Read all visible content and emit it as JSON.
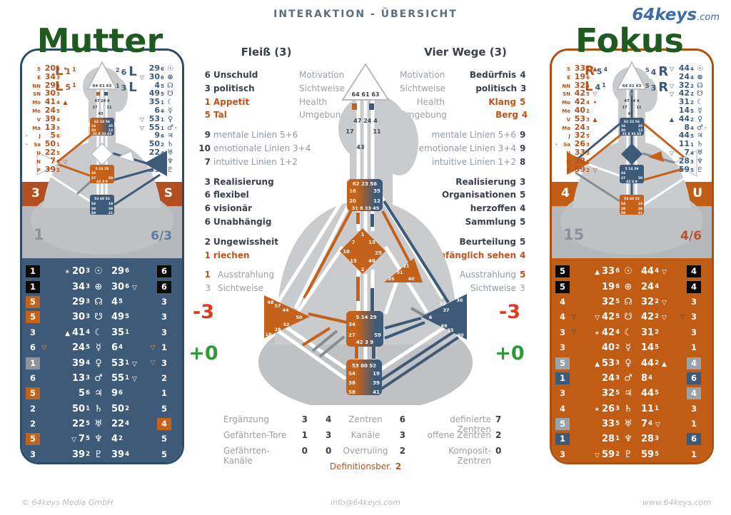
{
  "header": {
    "title": "INTERAKTION - ÜBERSICHT",
    "logo": "64keys",
    "logo_suffix": ".com"
  },
  "colors": {
    "orange": "#c05c13",
    "blue": "#3d5a78",
    "band_red": "#b34e1e",
    "title_green": "#1f5b21",
    "delta_red": "#e23a1e",
    "delta_green": "#2f9a35",
    "silhouette_gray": "#c9cbcd"
  },
  "deltas": {
    "left": {
      "minus": "-3",
      "plus": "+0"
    },
    "right": {
      "minus": "-3",
      "plus": "+0"
    }
  },
  "panels": {
    "left": {
      "title": "Mutter",
      "band": {
        "tl": "3",
        "tr": "S",
        "bl": "1",
        "br": "6/3"
      },
      "profile_left": [
        [
          "L",
          "1",
          "1"
        ],
        [
          "L",
          "5",
          "1"
        ]
      ],
      "profile_right": [
        [
          "2",
          "6",
          "L"
        ],
        [
          "1",
          "3",
          "L"
        ]
      ],
      "design": [
        [
          "",
          "S",
          "20",
          "3",
          "✶"
        ],
        [
          "",
          "E",
          "34",
          "3",
          ""
        ],
        [
          "",
          "NN",
          "29",
          "3",
          ""
        ],
        [
          "",
          "SN",
          "30",
          "3",
          ""
        ],
        [
          "",
          "Mo",
          "41",
          "4",
          "▲"
        ],
        [
          "",
          "Me",
          "24",
          "5",
          ""
        ],
        [
          "",
          "V",
          "39",
          "4",
          ""
        ],
        [
          "",
          "Ma",
          "13",
          "3",
          ""
        ],
        [
          "·",
          "J",
          "5",
          "6",
          ""
        ],
        [
          "·",
          "Sa",
          "50",
          "1",
          ""
        ],
        [
          "",
          "U",
          "22",
          "5",
          ""
        ],
        [
          "",
          "N",
          "7",
          "5",
          "▽"
        ],
        [
          "",
          "P",
          "39",
          "2",
          ""
        ]
      ],
      "person": [
        [
          "",
          "29",
          "6",
          "☉",
          ""
        ],
        [
          "▽",
          "30",
          "6",
          "⊕",
          ""
        ],
        [
          "",
          "4",
          "5",
          "☊",
          ""
        ],
        [
          "",
          "49",
          "5",
          "☋",
          ""
        ],
        [
          "",
          "35",
          "1",
          "☾",
          ""
        ],
        [
          "",
          "6",
          "4",
          "☿",
          ""
        ],
        [
          "▽",
          "53",
          "1",
          "♀",
          ""
        ],
        [
          "▽",
          "55",
          "1",
          "♂",
          "·"
        ],
        [
          "",
          "9",
          "6",
          "♃",
          ""
        ],
        [
          "",
          "50",
          "2",
          "♄",
          ""
        ],
        [
          "",
          "22",
          "4",
          "♅",
          ""
        ],
        [
          "",
          "4",
          "2",
          "♆",
          ""
        ],
        [
          "",
          "39",
          "4",
          "♇",
          ""
        ]
      ],
      "table": [
        [
          "1",
          "k",
          "",
          "✶",
          "20",
          "3",
          "☉",
          "29",
          "6",
          "",
          "",
          "6",
          "k"
        ],
        [
          "1",
          "k",
          "",
          "",
          "34",
          "3",
          "⊕",
          "30",
          "6",
          "▽",
          "",
          "6",
          "k"
        ],
        [
          "5",
          "o",
          "",
          "",
          "29",
          "3",
          "☊",
          "4",
          "5",
          "",
          "",
          "3",
          ""
        ],
        [
          "5",
          "o",
          "",
          "",
          "30",
          "3",
          "☋",
          "49",
          "5",
          "",
          "",
          "3",
          ""
        ],
        [
          "3",
          "",
          "",
          "▲",
          "41",
          "4",
          "☾",
          "35",
          "1",
          "",
          "",
          "3",
          ""
        ],
        [
          "6",
          "",
          "▽",
          "",
          "24",
          "5",
          "☿",
          "6",
          "4",
          "",
          "▽",
          "1",
          ""
        ],
        [
          "1",
          "g",
          "",
          "",
          "39",
          "4",
          "♀",
          "53",
          "1",
          "▽",
          "▽",
          "3",
          ""
        ],
        [
          "6",
          "",
          "",
          "",
          "13",
          "3",
          "♂",
          "55",
          "1",
          "▽",
          "",
          "2",
          ""
        ],
        [
          "5",
          "o",
          "",
          "",
          "5",
          "6",
          "♃",
          "9",
          "6",
          "",
          "",
          "1",
          ""
        ],
        [
          "2",
          "",
          "",
          "",
          "50",
          "1",
          "♄",
          "50",
          "2",
          "",
          "",
          "5",
          ""
        ],
        [
          "2",
          "",
          "",
          "",
          "22",
          "5",
          "♅",
          "22",
          "4",
          "",
          "",
          "4",
          "o"
        ],
        [
          "5",
          "o",
          "",
          "▽",
          "7",
          "5",
          "♆",
          "4",
          "2",
          "",
          "",
          "5",
          ""
        ],
        [
          "3",
          "",
          "",
          "",
          "39",
          "2",
          "♇",
          "39",
          "4",
          "",
          "",
          "5",
          ""
        ]
      ]
    },
    "right": {
      "title": "Fokus",
      "band": {
        "tl": "4",
        "tr": "U",
        "bl": "15",
        "br": "4/6"
      },
      "profile_left": [
        [
          "R",
          "5",
          "4"
        ],
        [
          "L",
          "4",
          "1"
        ]
      ],
      "profile_right": [
        [
          "5",
          "4",
          "R"
        ],
        [
          "5",
          "3",
          "R"
        ]
      ],
      "design": [
        [
          "",
          "S",
          "33",
          "6",
          "▲"
        ],
        [
          "",
          "E",
          "19",
          "6",
          ""
        ],
        [
          "",
          "NN",
          "32",
          "5",
          ""
        ],
        [
          "",
          "SN",
          "42",
          "5",
          "▽"
        ],
        [
          "",
          "Mo",
          "42",
          "4",
          "✶"
        ],
        [
          "",
          "Me",
          "40",
          "2",
          ""
        ],
        [
          "",
          "V",
          "53",
          "3",
          "▲"
        ],
        [
          "",
          "Ma",
          "24",
          "3",
          ""
        ],
        [
          "",
          "J",
          "32",
          "5",
          ""
        ],
        [
          "·",
          "Sa",
          "26",
          "3",
          "✶"
        ],
        [
          "",
          "U",
          "33",
          "5",
          ""
        ],
        [
          "",
          "N",
          "28",
          "1",
          ""
        ],
        [
          "",
          "P",
          "59",
          "2",
          "▽"
        ]
      ],
      "person": [
        [
          "▽",
          "44",
          "4",
          "☉",
          ""
        ],
        [
          "",
          "24",
          "4",
          "⊕",
          ""
        ],
        [
          "▽",
          "32",
          "2",
          "☊",
          ""
        ],
        [
          "▽",
          "42",
          "2",
          "☋",
          ""
        ],
        [
          "",
          "31",
          "2",
          "☾",
          ""
        ],
        [
          "",
          "14",
          "5",
          "☿",
          ""
        ],
        [
          "▲",
          "44",
          "2",
          "♀",
          ""
        ],
        [
          "",
          "8",
          "4",
          "♂",
          "·"
        ],
        [
          "",
          "44",
          "5",
          "♃",
          ""
        ],
        [
          "",
          "11",
          "1",
          "♄",
          ""
        ],
        [
          "▽",
          "7",
          "4",
          "♅",
          ""
        ],
        [
          "",
          "28",
          "3",
          "♆",
          ""
        ],
        [
          "",
          "59",
          "5",
          "♇",
          ""
        ]
      ],
      "table": [
        [
          "5",
          "k",
          "",
          "▲",
          "33",
          "6",
          "☉",
          "44",
          "4",
          "▽",
          "",
          "4",
          "k"
        ],
        [
          "5",
          "k",
          "",
          "",
          "19",
          "6",
          "⊕",
          "24",
          "4",
          "",
          "",
          "4",
          "k"
        ],
        [
          "4",
          "",
          "",
          "",
          "32",
          "5",
          "☊",
          "32",
          "2",
          "▽",
          "",
          "3",
          ""
        ],
        [
          "4",
          "",
          "▽",
          "▽",
          "42",
          "5",
          "☋",
          "42",
          "2",
          "▽",
          "▽",
          "3",
          ""
        ],
        [
          "3",
          "",
          "▽",
          "✶",
          "42",
          "4",
          "☾",
          "31",
          "2",
          "",
          "",
          "3",
          ""
        ],
        [
          "3",
          "",
          "",
          "",
          "40",
          "2",
          "☿",
          "14",
          "5",
          "",
          "",
          "1",
          ""
        ],
        [
          "5",
          "g",
          "",
          "▲",
          "53",
          "3",
          "♀",
          "44",
          "2",
          "▲",
          "",
          "4",
          "g"
        ],
        [
          "1",
          "b",
          "",
          "",
          "24",
          "3",
          "♂",
          "8",
          "4",
          "",
          "",
          "6",
          "b"
        ],
        [
          "3",
          "",
          "",
          "",
          "32",
          "5",
          "♃",
          "44",
          "5",
          "",
          "",
          "4",
          "g"
        ],
        [
          "4",
          "",
          "",
          "✶",
          "26",
          "3",
          "♄",
          "11",
          "1",
          "",
          "",
          "3",
          ""
        ],
        [
          "5",
          "g",
          "",
          "",
          "33",
          "5",
          "♅",
          "7",
          "4",
          "▽",
          "",
          "1",
          ""
        ],
        [
          "1",
          "b",
          "",
          "",
          "28",
          "1",
          "♆",
          "28",
          "3",
          "",
          "",
          "6",
          "b"
        ],
        [
          "3",
          "",
          "",
          "▽",
          "59",
          "2",
          "♇",
          "59",
          "5",
          "",
          "",
          "1",
          ""
        ]
      ]
    }
  },
  "fleiss": {
    "title": "Fleiß (3)",
    "g1": [
      [
        "6",
        "Unschuld",
        "d",
        "Motivation"
      ],
      [
        "3",
        "politisch",
        "d",
        "Sichtweise"
      ],
      [
        "1",
        "Appetit",
        "o",
        "Health"
      ],
      [
        "5",
        "Tal",
        "o",
        "Umgebung"
      ]
    ],
    "g2": [
      [
        "9",
        "mentale Linien 5+6"
      ],
      [
        "10",
        "emotionale Linien 3+4"
      ],
      [
        "7",
        "intuitive Linien 1+2"
      ]
    ],
    "g3": [
      [
        "3",
        "Realisierung"
      ],
      [
        "6",
        "flexibel"
      ],
      [
        "6",
        "visionär"
      ],
      [
        "6",
        "Unabhängig"
      ]
    ],
    "g4": [
      [
        "2",
        "Ungewissheit",
        "d"
      ],
      [
        "1",
        "riechen",
        "o"
      ]
    ],
    "g5": [
      [
        "1",
        "Ausstrahlung",
        "o"
      ],
      [
        "3",
        "Sichtweise",
        "gy"
      ]
    ]
  },
  "vier_wege": {
    "title": "Vier Wege (3)",
    "g1": [
      [
        "Motivation",
        "Bedürfnis",
        "d",
        "4"
      ],
      [
        "Sichtweise",
        "politisch",
        "d",
        "3"
      ],
      [
        "Health",
        "Klang",
        "o",
        "5"
      ],
      [
        "Umgebung",
        "Berg",
        "o",
        "4"
      ]
    ],
    "g2": [
      [
        "mentale Linien 5+6",
        "9"
      ],
      [
        "emotionale Linien 3+4",
        "9"
      ],
      [
        "intuitive Linien 1+2",
        "8"
      ]
    ],
    "g3": [
      [
        "Realisierung",
        "3"
      ],
      [
        "Organisationen",
        "5"
      ],
      [
        "herzoffen",
        "4"
      ],
      [
        "Sammlung",
        "5"
      ]
    ],
    "g4": [
      [
        "Beurteilung",
        "d",
        "5"
      ],
      [
        "umfänglich sehen",
        "o",
        "4"
      ]
    ],
    "g5": [
      [
        "Ausstrahlung",
        "o",
        "5"
      ],
      [
        "Sichtweise",
        "gy",
        "3"
      ]
    ]
  },
  "stats": {
    "left": [
      [
        "Ergänzung",
        "3"
      ],
      [
        "Gefährten-Tore",
        "1"
      ],
      [
        "Gefährten-Kanäle",
        "0"
      ]
    ],
    "mid": [
      [
        "4",
        "Zentren",
        "6"
      ],
      [
        "3",
        "Kanäle",
        "3"
      ],
      [
        "0",
        "Overruling",
        "2"
      ]
    ],
    "mid_note": {
      "label": "Definitionsber.",
      "value": "2"
    },
    "right": [
      [
        "definierte Zentren",
        "7"
      ],
      [
        "offene Zentren",
        "2"
      ],
      [
        "Komposit-Zentren",
        "0"
      ]
    ]
  },
  "bodygraph": {
    "head": "64 61 63",
    "ajna": {
      "row": "47 24 4",
      "g17": "17",
      "g11": "11",
      "g43": "43"
    },
    "throat": {
      "r1": "62 23 56",
      "g16": "16",
      "g35": "35",
      "g20": "20",
      "g12": "12",
      "r4": "31 8 33 45"
    },
    "g": {
      "g1": "1",
      "g7": "7",
      "g13": "13",
      "g10": "10",
      "g25": "25",
      "g15": "15",
      "g46": "46",
      "g2": "2"
    },
    "heart": {
      "g21": "21",
      "g51": "51",
      "g26": "26",
      "g40": "40"
    },
    "spleen": {
      "g48": "48",
      "g57": "57",
      "g44": "44",
      "g50": "50",
      "g32": "32",
      "g28": "28",
      "g18": "18"
    },
    "sp": {
      "g36": "36",
      "g22": "22",
      "g37": "37",
      "g6": "6",
      "g49": "49",
      "g55": "55",
      "g30": "30"
    },
    "sacral": {
      "r1": "5 14 29",
      "g34": "34",
      "g27": "27",
      "g59": "59",
      "r4": "42 3 9"
    },
    "root": {
      "r1": "53 60 52",
      "g54": "54",
      "g19": "19",
      "g38": "38",
      "g39": "39",
      "g58": "58",
      "g41": "41"
    }
  },
  "footer": {
    "left": "© 64keys Media GmbH",
    "center": "info@64keys.com",
    "right": "www.64keys.com"
  }
}
